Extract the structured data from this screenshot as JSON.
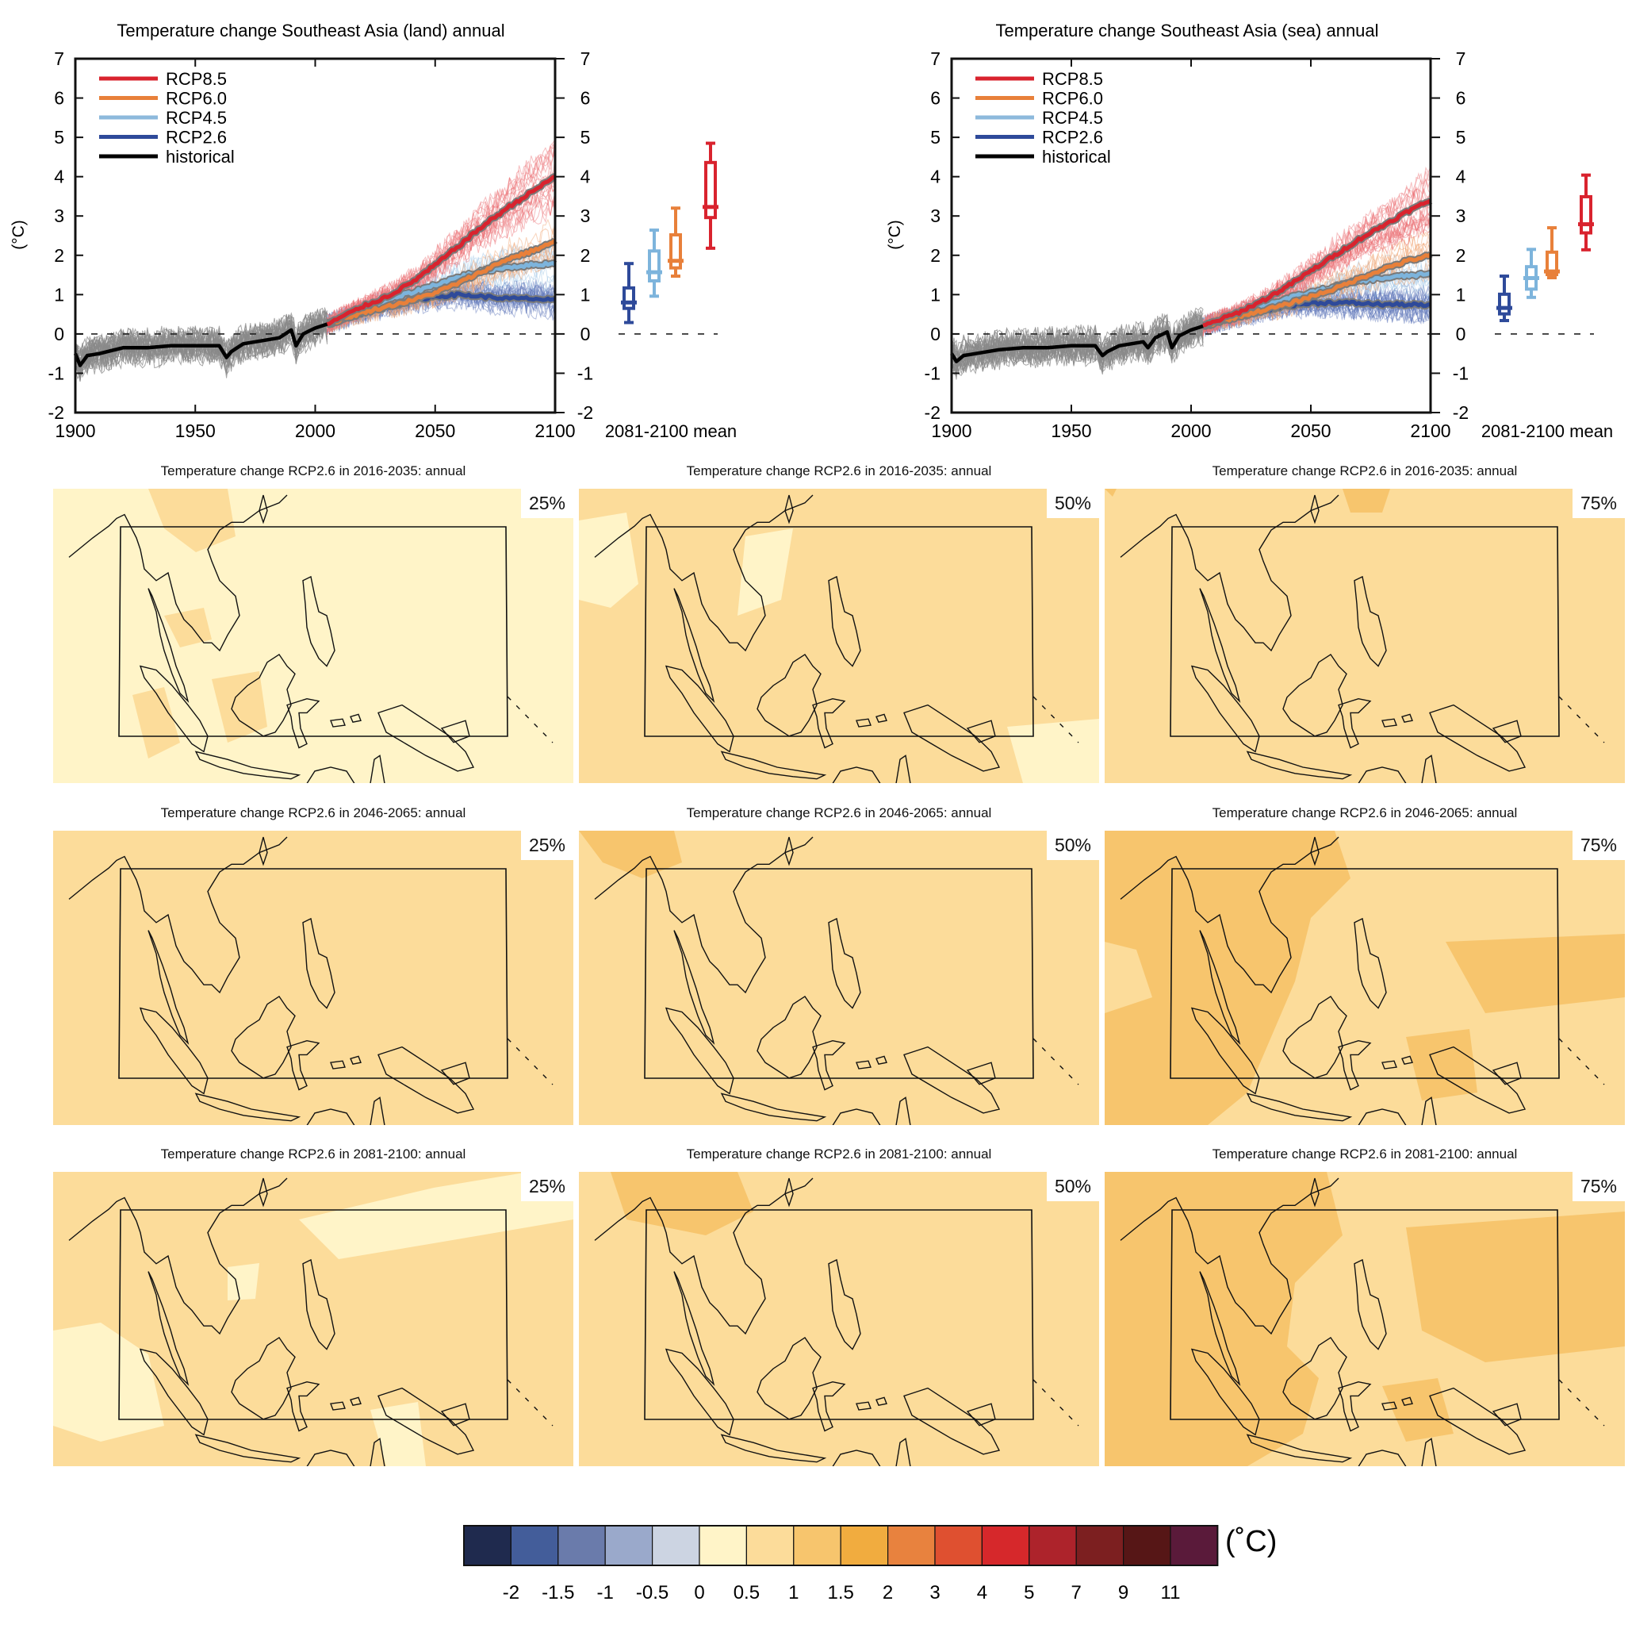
{
  "chart_data": [
    {
      "type": "line",
      "id": "land",
      "title": "Temperature change Southeast Asia (land) annual",
      "ylabel": "(°C)",
      "xlim": [
        1900,
        2100
      ],
      "ylim": [
        -2,
        7
      ],
      "xticks": [
        "1900",
        "1950",
        "2000",
        "2050",
        "2100"
      ],
      "yticks": [
        "-2",
        "-1",
        "0",
        "1",
        "2",
        "3",
        "4",
        "5",
        "6",
        "7"
      ],
      "box_xlabel": "2081-2100 mean",
      "legend_position": "top-left",
      "legend": [
        "RCP8.5",
        "RCP6.0",
        "RCP4.5",
        "RCP2.6",
        "historical"
      ],
      "series": [
        {
          "name": "historical",
          "color": "#000000",
          "x": [
            1900,
            1902,
            1905,
            1910,
            1920,
            1930,
            1940,
            1950,
            1960,
            1963,
            1965,
            1970,
            1980,
            1985,
            1990,
            1992,
            1995,
            2000,
            2005
          ],
          "y": [
            -0.5,
            -0.8,
            -0.55,
            -0.5,
            -0.35,
            -0.35,
            -0.3,
            -0.3,
            -0.3,
            -0.6,
            -0.45,
            -0.25,
            -0.15,
            -0.1,
            0.1,
            -0.3,
            0.0,
            0.15,
            0.25
          ]
        },
        {
          "name": "RCP2.6",
          "color": "#2e4a9a",
          "x": [
            2005,
            2020,
            2030,
            2040,
            2050,
            2060,
            2070,
            2080,
            2090,
            2100
          ],
          "y": [
            0.25,
            0.55,
            0.7,
            0.85,
            0.95,
            1.0,
            0.95,
            0.9,
            0.9,
            0.85
          ]
        },
        {
          "name": "RCP4.5",
          "color": "#7db4dc",
          "x": [
            2005,
            2020,
            2030,
            2040,
            2050,
            2060,
            2070,
            2080,
            2090,
            2100
          ],
          "y": [
            0.25,
            0.6,
            0.85,
            1.05,
            1.25,
            1.45,
            1.6,
            1.7,
            1.75,
            1.8
          ]
        },
        {
          "name": "RCP6.0",
          "color": "#e8803a",
          "x": [
            2005,
            2020,
            2030,
            2040,
            2050,
            2060,
            2070,
            2080,
            2090,
            2100
          ],
          "y": [
            0.25,
            0.55,
            0.7,
            0.85,
            1.05,
            1.3,
            1.6,
            1.9,
            2.1,
            2.35
          ]
        },
        {
          "name": "RCP8.5",
          "color": "#d9232e",
          "x": [
            2005,
            2020,
            2030,
            2040,
            2050,
            2060,
            2070,
            2080,
            2090,
            2100
          ],
          "y": [
            0.25,
            0.7,
            0.95,
            1.3,
            1.75,
            2.25,
            2.75,
            3.2,
            3.6,
            4.0
          ]
        }
      ],
      "boxes": [
        {
          "name": "RCP2.6",
          "color": "#2e4a9a",
          "min": 0.29,
          "q1": 0.65,
          "median": 0.8,
          "q3": 1.17,
          "max": 1.79
        },
        {
          "name": "RCP4.5",
          "color": "#7db4dc",
          "min": 0.96,
          "q1": 1.35,
          "median": 1.57,
          "q3": 2.11,
          "max": 2.64
        },
        {
          "name": "RCP6.0",
          "color": "#e8803a",
          "min": 1.47,
          "q1": 1.68,
          "median": 1.86,
          "q3": 2.52,
          "max": 3.2
        },
        {
          "name": "RCP8.5",
          "color": "#d9232e",
          "min": 2.18,
          "q1": 2.96,
          "median": 3.23,
          "q3": 4.36,
          "max": 4.85
        }
      ]
    },
    {
      "type": "line",
      "id": "sea",
      "title": "Temperature change Southeast Asia (sea) annual",
      "ylabel": "(°C)",
      "xlim": [
        1900,
        2100
      ],
      "ylim": [
        -2,
        7
      ],
      "xticks": [
        "1900",
        "1950",
        "2000",
        "2050",
        "2100"
      ],
      "yticks": [
        "-2",
        "-1",
        "0",
        "1",
        "2",
        "3",
        "4",
        "5",
        "6",
        "7"
      ],
      "box_xlabel": "2081-2100 mean",
      "legend_position": "top-left",
      "legend": [
        "RCP8.5",
        "RCP6.0",
        "RCP4.5",
        "RCP2.6",
        "historical"
      ],
      "series": [
        {
          "name": "historical",
          "color": "#000000",
          "x": [
            1900,
            1902,
            1905,
            1910,
            1920,
            1930,
            1940,
            1950,
            1960,
            1963,
            1965,
            1970,
            1980,
            1982,
            1985,
            1990,
            1992,
            1995,
            2000,
            2005
          ],
          "y": [
            -0.5,
            -0.7,
            -0.55,
            -0.5,
            -0.4,
            -0.35,
            -0.35,
            -0.3,
            -0.3,
            -0.55,
            -0.45,
            -0.3,
            -0.2,
            -0.35,
            -0.1,
            0.05,
            -0.35,
            -0.05,
            0.1,
            0.2
          ]
        },
        {
          "name": "RCP2.6",
          "color": "#2e4a9a",
          "x": [
            2005,
            2020,
            2030,
            2040,
            2050,
            2060,
            2070,
            2080,
            2090,
            2100
          ],
          "y": [
            0.2,
            0.45,
            0.6,
            0.72,
            0.78,
            0.8,
            0.78,
            0.75,
            0.75,
            0.72
          ]
        },
        {
          "name": "RCP4.5",
          "color": "#7db4dc",
          "x": [
            2005,
            2020,
            2030,
            2040,
            2050,
            2060,
            2070,
            2080,
            2090,
            2100
          ],
          "y": [
            0.2,
            0.5,
            0.72,
            0.9,
            1.05,
            1.2,
            1.35,
            1.42,
            1.48,
            1.52
          ]
        },
        {
          "name": "RCP6.0",
          "color": "#e8803a",
          "x": [
            2005,
            2020,
            2030,
            2040,
            2050,
            2060,
            2070,
            2080,
            2090,
            2100
          ],
          "y": [
            0.2,
            0.45,
            0.6,
            0.75,
            0.95,
            1.15,
            1.4,
            1.65,
            1.85,
            2.0
          ]
        },
        {
          "name": "RCP8.5",
          "color": "#d9232e",
          "x": [
            2005,
            2020,
            2030,
            2040,
            2050,
            2060,
            2070,
            2080,
            2090,
            2100
          ],
          "y": [
            0.2,
            0.55,
            0.85,
            1.2,
            1.6,
            2.0,
            2.4,
            2.75,
            3.1,
            3.4
          ]
        }
      ],
      "boxes": [
        {
          "name": "RCP2.6",
          "color": "#2e4a9a",
          "min": 0.34,
          "q1": 0.51,
          "median": 0.66,
          "q3": 1.01,
          "max": 1.47
        },
        {
          "name": "RCP4.5",
          "color": "#7db4dc",
          "min": 0.93,
          "q1": 1.14,
          "median": 1.42,
          "q3": 1.71,
          "max": 2.15
        },
        {
          "name": "RCP6.0",
          "color": "#e8803a",
          "min": 1.43,
          "q1": 1.51,
          "median": 1.59,
          "q3": 2.08,
          "max": 2.7
        },
        {
          "name": "RCP8.5",
          "color": "#d9232e",
          "min": 2.14,
          "q1": 2.57,
          "median": 2.79,
          "q3": 3.49,
          "max": 4.04
        }
      ]
    },
    {
      "type": "heatmap",
      "id": "maps",
      "panels": [
        {
          "title": "Temperature change RCP2.6 in 2016-2035: annual",
          "percentile": "25%",
          "base": 5,
          "patch": 6
        },
        {
          "title": "Temperature change RCP2.6 in 2016-2035: annual",
          "percentile": "50%",
          "base": 6,
          "patch": 5
        },
        {
          "title": "Temperature change RCP2.6 in 2016-2035: annual",
          "percentile": "75%",
          "base": 6,
          "patch": 7
        },
        {
          "title": "Temperature change RCP2.6 in 2046-2065: annual",
          "percentile": "25%",
          "base": 6,
          "patch": 6
        },
        {
          "title": "Temperature change RCP2.6 in 2046-2065: annual",
          "percentile": "50%",
          "base": 6,
          "patch": 7
        },
        {
          "title": "Temperature change RCP2.6 in 2046-2065: annual",
          "percentile": "75%",
          "base": 6,
          "patch": 7
        },
        {
          "title": "Temperature change RCP2.6 in 2081-2100: annual",
          "percentile": "25%",
          "base": 6,
          "patch": 5
        },
        {
          "title": "Temperature change RCP2.6 in 2081-2100: annual",
          "percentile": "50%",
          "base": 6,
          "patch": 7
        },
        {
          "title": "Temperature change RCP2.6 in 2081-2100: annual",
          "percentile": "75%",
          "base": 6,
          "patch": 7
        }
      ]
    }
  ],
  "colorbar": {
    "unit": "(˚C)",
    "colors": [
      "#1f2a4e",
      "#435d9a",
      "#6a7bab",
      "#9aa9cb",
      "#ccd4e2",
      "#fff4c8",
      "#fcdc9a",
      "#f7c56d",
      "#f1ac3f",
      "#e8823e",
      "#df5030",
      "#d6282b",
      "#ad232b",
      "#7c1f20",
      "#561616",
      "#5a1a3a"
    ],
    "labels": [
      "-2",
      "-1.5",
      "-1",
      "-0.5",
      "0",
      "0.5",
      "1",
      "1.5",
      "2",
      "3",
      "4",
      "5",
      "7",
      "9",
      "11"
    ]
  }
}
